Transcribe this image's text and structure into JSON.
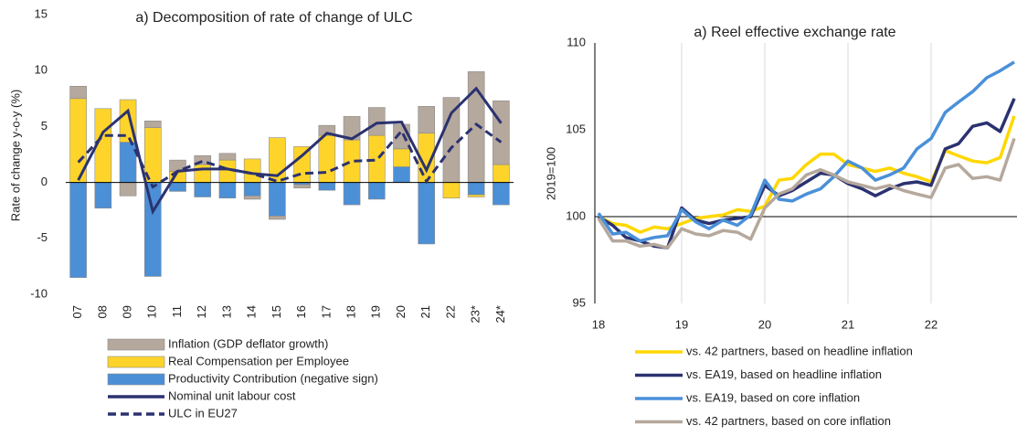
{
  "chart_data": [
    {
      "type": "bar",
      "stacked": true,
      "title": "a) Decomposition of rate of change of ULC",
      "y_label": "Rate of change y-o-y (%)",
      "categories": [
        "07",
        "08",
        "09",
        "10",
        "11",
        "12",
        "13",
        "14",
        "15",
        "16",
        "17",
        "18",
        "19",
        "20",
        "21",
        "22",
        "23*",
        "24*"
      ],
      "ylim": [
        -10,
        15
      ],
      "yticks": [
        -10,
        -5,
        0,
        5,
        10,
        15
      ],
      "series": [
        {
          "name": "Inflation (GDP deflator growth)",
          "color": "#b5a89c",
          "type": "bar",
          "values": [
            1.1,
            0,
            -1.2,
            0.6,
            1.0,
            0.8,
            0.6,
            -0.3,
            -0.3,
            -0.3,
            0.9,
            2.1,
            2.5,
            2.2,
            2.4,
            7.6,
            9.9,
            5.7
          ]
        },
        {
          "name": "Real Compensation per Employee",
          "color": "#ffd42a",
          "type": "bar",
          "values": [
            7.5,
            6.6,
            3.8,
            4.9,
            1.0,
            1.6,
            2.0,
            2.1,
            4.0,
            3.2,
            4.2,
            3.8,
            4.2,
            1.6,
            4.4,
            -1.4,
            -0.2,
            1.6
          ]
        },
        {
          "name": "Productivity Contribution (negative sign)",
          "color": "#4b8fd6",
          "type": "bar",
          "values": [
            -8.5,
            -2.3,
            3.6,
            -8.4,
            -0.8,
            -1.3,
            -1.4,
            -1.2,
            -3.0,
            -0.2,
            -0.7,
            -2.0,
            -1.5,
            1.4,
            -5.5,
            0,
            -1.1,
            -2.0
          ]
        },
        {
          "name": "Nominal unit labour cost",
          "color": "#2b3270",
          "type": "line",
          "dashed": false,
          "values": [
            0.2,
            4.5,
            6.4,
            -2.6,
            1.0,
            1.2,
            1.2,
            0.8,
            0.6,
            2.4,
            4.4,
            3.9,
            5.3,
            5.4,
            1.1,
            6.2,
            8.4,
            5.3
          ]
        },
        {
          "name": "ULC in EU27",
          "color": "#2b3270",
          "type": "line",
          "dashed": true,
          "values": [
            1.8,
            4.2,
            4.2,
            -0.4,
            1.0,
            1.9,
            1.2,
            0.8,
            0.1,
            0.8,
            0.9,
            1.9,
            2.0,
            4.6,
            0.1,
            3.1,
            5.2,
            3.6
          ]
        }
      ]
    },
    {
      "type": "line",
      "title": "a) Reel effective exchange rate",
      "y_label": "2019=100",
      "x": [
        18,
        18.17,
        18.33,
        18.5,
        18.67,
        18.83,
        19,
        19.17,
        19.33,
        19.5,
        19.67,
        19.83,
        20,
        20.17,
        20.33,
        20.5,
        20.67,
        20.83,
        21,
        21.17,
        21.33,
        21.5,
        21.67,
        21.83,
        22,
        22.17,
        22.33,
        22.5,
        22.67,
        22.83,
        23
      ],
      "xlim": [
        18,
        23
      ],
      "xticks": [
        18,
        19,
        20,
        21,
        22
      ],
      "ylim": [
        95,
        110
      ],
      "yticks": [
        95,
        100,
        105,
        110
      ],
      "grid": true,
      "reference_line": 100,
      "series": [
        {
          "name": "vs. 42 partners, based on headline inflation",
          "color": "#ffd700",
          "values": [
            100.0,
            99.6,
            99.5,
            99.1,
            99.4,
            99.3,
            99.6,
            99.9,
            100.0,
            100.1,
            100.4,
            100.3,
            100.6,
            102.1,
            102.2,
            103.0,
            103.6,
            103.6,
            103.0,
            102.8,
            102.6,
            102.8,
            102.5,
            102.3,
            102.0,
            103.8,
            103.5,
            103.2,
            103.1,
            103.4,
            105.8
          ]
        },
        {
          "name": "vs. EA19, based on headline inflation",
          "color": "#2b3270",
          "values": [
            100.0,
            99.5,
            98.8,
            98.6,
            98.3,
            98.2,
            100.5,
            99.8,
            99.6,
            99.8,
            99.9,
            100.0,
            101.8,
            101.2,
            101.5,
            102.0,
            102.5,
            102.4,
            101.9,
            101.6,
            101.2,
            101.6,
            101.9,
            102.0,
            101.8,
            103.9,
            104.2,
            105.2,
            105.4,
            104.9,
            106.8
          ]
        },
        {
          "name": "vs. EA19, based on core inflation",
          "color": "#4a90d9",
          "values": [
            100.2,
            99.0,
            99.1,
            98.6,
            98.8,
            98.9,
            100.4,
            99.7,
            99.3,
            99.8,
            99.5,
            100.1,
            102.1,
            101.0,
            100.9,
            101.3,
            101.6,
            102.3,
            103.2,
            102.8,
            102.1,
            102.4,
            102.8,
            103.9,
            104.5,
            106.0,
            106.6,
            107.2,
            108.0,
            108.4,
            108.9
          ]
        },
        {
          "name": "vs. 42 partners, based on core inflation",
          "color": "#b5a89c",
          "values": [
            99.9,
            98.6,
            98.6,
            98.3,
            98.4,
            98.2,
            99.3,
            99.0,
            98.9,
            99.2,
            99.1,
            98.7,
            100.5,
            101.3,
            101.6,
            102.4,
            102.7,
            102.4,
            102.0,
            101.8,
            101.6,
            101.8,
            101.5,
            101.3,
            101.1,
            102.8,
            103.0,
            102.2,
            102.3,
            102.1,
            104.5
          ]
        }
      ]
    }
  ]
}
